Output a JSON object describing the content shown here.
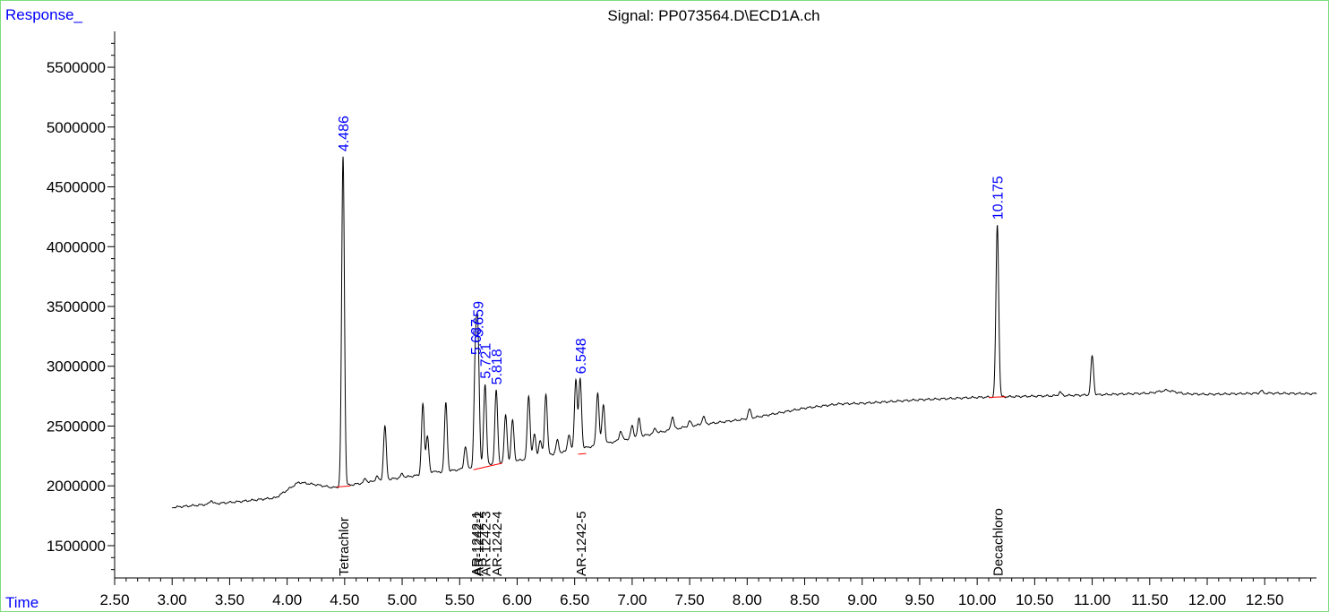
{
  "chart_data": {
    "type": "line",
    "title": "Signal: PP073564.D\\ECD1A.ch",
    "ylabel": "Response_",
    "xlabel": "Time",
    "xlim": [
      2.5,
      12.95
    ],
    "ylim": [
      1230000,
      5800000
    ],
    "x_ticks": [
      "2.50",
      "3.00",
      "3.50",
      "4.00",
      "4.50",
      "5.00",
      "5.50",
      "6.00",
      "6.50",
      "7.00",
      "7.50",
      "8.00",
      "8.50",
      "9.00",
      "9.50",
      "10.00",
      "10.50",
      "11.00",
      "11.50",
      "12.00",
      "12.50"
    ],
    "y_ticks": [
      "1500000",
      "2000000",
      "2500000",
      "3000000",
      "3500000",
      "4000000",
      "4500000",
      "5000000",
      "5500000"
    ],
    "baseline": [
      [
        3.0,
        1820000
      ],
      [
        3.3,
        1845000
      ],
      [
        3.6,
        1870000
      ],
      [
        3.9,
        1900000
      ],
      [
        4.1,
        2030000
      ],
      [
        4.25,
        2010000
      ],
      [
        4.4,
        1985000
      ],
      [
        4.7,
        2030000
      ],
      [
        5.0,
        2070000
      ],
      [
        5.3,
        2110000
      ],
      [
        5.6,
        2150000
      ],
      [
        6.0,
        2210000
      ],
      [
        6.5,
        2300000
      ],
      [
        7.0,
        2400000
      ],
      [
        7.5,
        2500000
      ],
      [
        8.0,
        2560000
      ],
      [
        8.5,
        2650000
      ],
      [
        8.8,
        2685000
      ],
      [
        9.0,
        2690000
      ],
      [
        9.5,
        2720000
      ],
      [
        10.0,
        2740000
      ],
      [
        10.5,
        2750000
      ],
      [
        11.0,
        2760000
      ],
      [
        11.5,
        2775000
      ],
      [
        11.65,
        2800000
      ],
      [
        11.8,
        2770000
      ],
      [
        12.0,
        2765000
      ],
      [
        12.5,
        2775000
      ],
      [
        12.95,
        2770000
      ]
    ],
    "peaks": [
      [
        3.34,
        1880000
      ],
      [
        4.486,
        4750000
      ],
      [
        4.68,
        2060000
      ],
      [
        4.78,
        2080000
      ],
      [
        4.85,
        2500000
      ],
      [
        5.0,
        2100000
      ],
      [
        5.18,
        2680000
      ],
      [
        5.22,
        2420000
      ],
      [
        5.28,
        2130000
      ],
      [
        5.38,
        2690000
      ],
      [
        5.55,
        2330000
      ],
      [
        5.637,
        3050000
      ],
      [
        5.659,
        3200000
      ],
      [
        5.721,
        2850000
      ],
      [
        5.818,
        2800000
      ],
      [
        5.9,
        2590000
      ],
      [
        5.96,
        2550000
      ],
      [
        6.1,
        2750000
      ],
      [
        6.15,
        2430000
      ],
      [
        6.2,
        2380000
      ],
      [
        6.25,
        2770000
      ],
      [
        6.35,
        2380000
      ],
      [
        6.45,
        2430000
      ],
      [
        6.51,
        2890000
      ],
      [
        6.548,
        2890000
      ],
      [
        6.7,
        2780000
      ],
      [
        6.75,
        2680000
      ],
      [
        6.9,
        2460000
      ],
      [
        7.0,
        2500000
      ],
      [
        7.06,
        2560000
      ],
      [
        7.2,
        2480000
      ],
      [
        7.35,
        2580000
      ],
      [
        7.5,
        2540000
      ],
      [
        7.62,
        2580000
      ],
      [
        8.02,
        2640000
      ],
      [
        10.175,
        4180000
      ],
      [
        10.72,
        2785000
      ],
      [
        11.0,
        3085000
      ],
      [
        12.47,
        2795000
      ]
    ],
    "peak_labels": [
      {
        "x": 4.486,
        "y": 4750000,
        "text": "4.486"
      },
      {
        "x": 5.637,
        "y": 3050000,
        "text": "5.637"
      },
      {
        "x": 5.659,
        "y": 3200000,
        "text": "5.659"
      },
      {
        "x": 5.721,
        "y": 2850000,
        "text": "5.721"
      },
      {
        "x": 5.818,
        "y": 2800000,
        "text": "5.818"
      },
      {
        "x": 6.548,
        "y": 2890000,
        "text": "6.548"
      },
      {
        "x": 10.175,
        "y": 4180000,
        "text": "10.175"
      }
    ],
    "compound_labels": [
      {
        "x": 4.486,
        "text": "Tetrachlor"
      },
      {
        "x": 5.637,
        "text": "AR-1242-1"
      },
      {
        "x": 5.659,
        "text": "AR-1242-2"
      },
      {
        "x": 5.721,
        "text": "AR-1242-3"
      },
      {
        "x": 5.818,
        "text": "AR-1242-4"
      },
      {
        "x": 6.548,
        "text": "AR-1242-5"
      },
      {
        "x": 10.175,
        "text": "Decachloro"
      }
    ],
    "integration_baselines": [
      {
        "from": [
          4.43,
          1990000
        ],
        "to": [
          4.55,
          2000000
        ]
      },
      {
        "from": [
          5.62,
          2135000
        ],
        "to": [
          5.87,
          2190000
        ]
      },
      {
        "from": [
          6.53,
          2265000
        ],
        "to": [
          6.6,
          2270000
        ]
      },
      {
        "from": [
          10.1,
          2740000
        ],
        "to": [
          10.25,
          2745000
        ]
      }
    ],
    "colors": {
      "trace": "#000000",
      "peak_label": "#0000ff",
      "axis_title": "#0000ff",
      "integration": "#ff0000",
      "frame": "#7fdc7f"
    }
  }
}
